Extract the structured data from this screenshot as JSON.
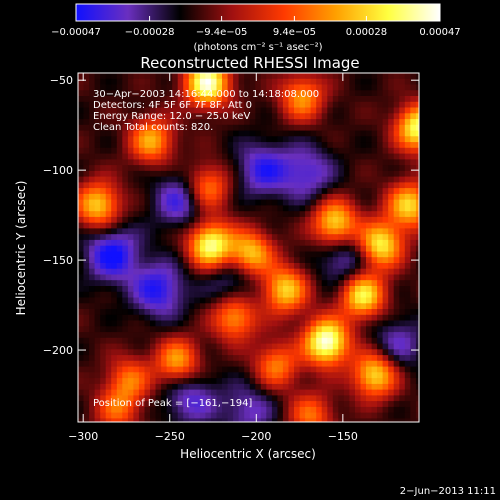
{
  "chart_data": {
    "type": "heatmap",
    "title": "Reconstructed RHESSI Image",
    "xlabel": "Heliocentric X (arcsec)",
    "ylabel": "Heliocentric Y (arcsec)",
    "xlim": [
      -303,
      -106
    ],
    "ylim": [
      -240,
      -46
    ],
    "x_ticks": [
      -300,
      -250,
      -200,
      -150
    ],
    "y_ticks": [
      -50,
      -100,
      -150,
      -200
    ],
    "x_tick_labels": [
      "−300",
      "−250",
      "−200",
      "−150"
    ],
    "y_tick_labels": [
      "−50",
      "−100",
      "−150",
      "−200"
    ],
    "colorbar": {
      "min": -0.00047,
      "max": 0.00047,
      "ticks": [
        -0.00047,
        -0.00028,
        -9.4e-05,
        9.4e-05,
        0.00028,
        0.00047
      ],
      "tick_labels": [
        "−0.00047",
        "−0.00028",
        "−9.4e−05",
        "9.4e−05",
        "0.00028",
        "0.00047"
      ],
      "unit": "(photons cm⁻² s⁻¹ asec⁻²)",
      "colormap": [
        "#1010ff",
        "#6a2fbf",
        "#000000",
        "#a01010",
        "#ff3a00",
        "#ffa000",
        "#ffff40",
        "#ffffff"
      ]
    },
    "annotations": [
      "30−Apr−2003 14:16:44.000 to 14:18:08.000",
      "Detectors: 4F 5F 6F 7F 8F, Att 0",
      "Energy Range: 12.0 − 25.0 keV",
      "Clean    Total counts: 820."
    ],
    "peak_label": "Position of Peak = [−161,−194]",
    "peak": [
      -161,
      -194
    ],
    "bright_sources": [
      {
        "x": -230,
        "y": -50,
        "level": 0.95
      },
      {
        "x": -175,
        "y": -58,
        "level": 0.55
      },
      {
        "x": -108,
        "y": -75,
        "level": 0.85
      },
      {
        "x": -293,
        "y": -118,
        "level": 0.7
      },
      {
        "x": -262,
        "y": -82,
        "level": 0.6
      },
      {
        "x": -230,
        "y": -108,
        "level": 0.55
      },
      {
        "x": -228,
        "y": -140,
        "level": 0.9
      },
      {
        "x": -205,
        "y": -145,
        "level": 0.7
      },
      {
        "x": -156,
        "y": -128,
        "level": 0.75
      },
      {
        "x": -130,
        "y": -140,
        "level": 0.8
      },
      {
        "x": -140,
        "y": -168,
        "level": 0.8
      },
      {
        "x": -185,
        "y": -165,
        "level": 0.7
      },
      {
        "x": -214,
        "y": -180,
        "level": 0.6
      },
      {
        "x": -161,
        "y": -194,
        "level": 1.0
      },
      {
        "x": -133,
        "y": -212,
        "level": 0.75
      },
      {
        "x": -247,
        "y": -205,
        "level": 0.6
      },
      {
        "x": -190,
        "y": -207,
        "level": 0.5
      },
      {
        "x": -275,
        "y": -215,
        "level": 0.45
      },
      {
        "x": -170,
        "y": -235,
        "level": 0.45
      },
      {
        "x": -113,
        "y": -118,
        "level": 0.7
      },
      {
        "x": -282,
        "y": -232,
        "level": 0.4
      }
    ],
    "dark_regions": [
      {
        "x": -285,
        "y": -145,
        "level": -0.5
      },
      {
        "x": -258,
        "y": -165,
        "level": -0.45
      },
      {
        "x": -245,
        "y": -115,
        "level": -0.4
      },
      {
        "x": -240,
        "y": -225,
        "level": -0.35
      },
      {
        "x": -198,
        "y": -98,
        "level": -0.4
      },
      {
        "x": -172,
        "y": -100,
        "level": -0.35
      },
      {
        "x": -215,
        "y": -160,
        "level": -0.3
      },
      {
        "x": -120,
        "y": -195,
        "level": -0.3
      },
      {
        "x": -150,
        "y": -148,
        "level": -0.35
      },
      {
        "x": -206,
        "y": -232,
        "level": -0.3
      }
    ]
  },
  "footer": {
    "timestamp": "2−Jun−2013 11:11"
  }
}
